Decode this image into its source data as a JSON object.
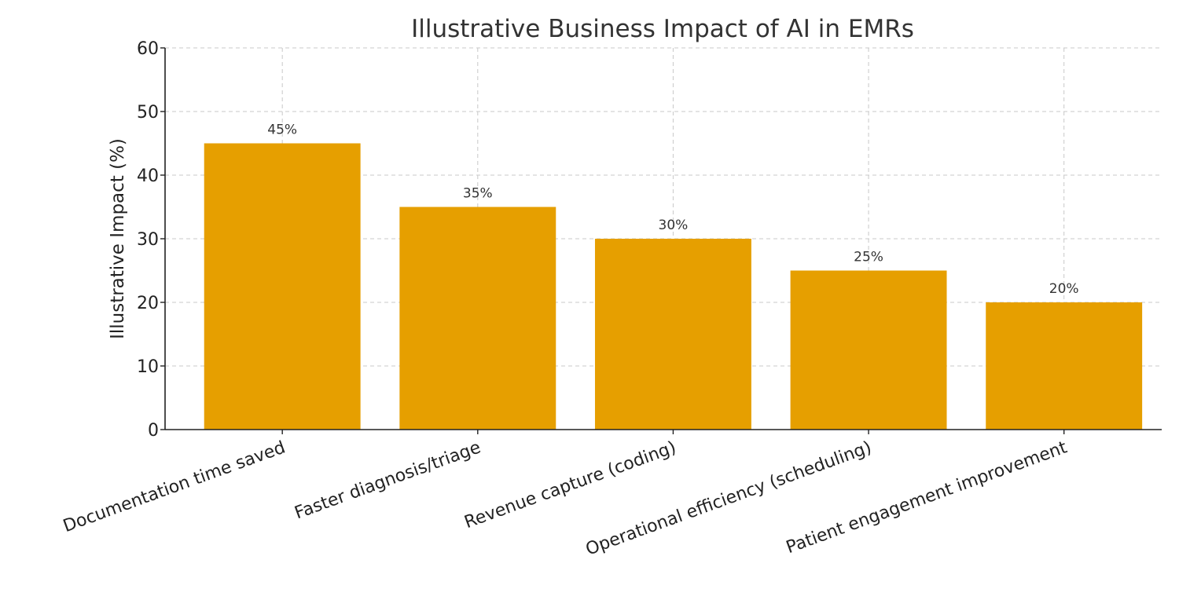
{
  "chart_data": {
    "type": "bar",
    "title": "Illustrative Business Impact of AI in EMRs",
    "xlabel": "",
    "ylabel": "Illustrative Impact (%)",
    "ylim": [
      0,
      60
    ],
    "yticks": [
      0,
      10,
      20,
      30,
      40,
      50,
      60
    ],
    "grid": true,
    "categories": [
      "Documentation time saved",
      "Faster diagnosis/triage",
      "Revenue capture (coding)",
      "Operational efficiency (scheduling)",
      "Patient engagement improvement"
    ],
    "values": [
      45,
      35,
      30,
      25,
      20
    ],
    "data_labels": [
      "45%",
      "35%",
      "30%",
      "25%",
      "20%"
    ],
    "bar_color": "#E69F00"
  }
}
